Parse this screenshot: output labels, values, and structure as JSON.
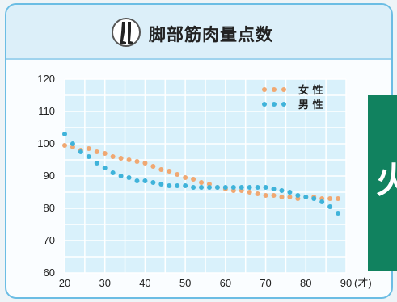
{
  "header": {
    "title": "脚部筋肉量点数",
    "icon": "legs-icon"
  },
  "chart_data": {
    "type": "scatter",
    "title": "脚部筋肉量点数",
    "xlabel": "",
    "ylabel": "",
    "x_unit": "(才)",
    "xlim": [
      20,
      90
    ],
    "ylim": [
      60,
      120
    ],
    "xticks": [
      20,
      30,
      40,
      50,
      60,
      70,
      80,
      90
    ],
    "yticks": [
      60,
      70,
      80,
      90,
      100,
      110,
      120
    ],
    "grid": true,
    "legend_position": "top-right",
    "series": [
      {
        "name": "女 性",
        "color": "#f0a872",
        "points": [
          [
            20,
            99.5
          ],
          [
            22,
            99
          ],
          [
            24,
            98
          ],
          [
            26,
            98.5
          ],
          [
            28,
            97.5
          ],
          [
            30,
            97
          ],
          [
            32,
            96
          ],
          [
            34,
            95.5
          ],
          [
            36,
            95
          ],
          [
            38,
            94.5
          ],
          [
            40,
            94
          ],
          [
            42,
            93
          ],
          [
            44,
            92
          ],
          [
            46,
            91.5
          ],
          [
            48,
            90.5
          ],
          [
            50,
            89.5
          ],
          [
            52,
            89
          ],
          [
            54,
            88
          ],
          [
            56,
            87.5
          ],
          [
            58,
            86.5
          ],
          [
            60,
            86
          ],
          [
            62,
            85.5
          ],
          [
            64,
            85.5
          ],
          [
            66,
            85
          ],
          [
            68,
            84.5
          ],
          [
            70,
            84
          ],
          [
            72,
            84
          ],
          [
            74,
            83.5
          ],
          [
            76,
            83.5
          ],
          [
            78,
            83
          ],
          [
            80,
            83.5
          ],
          [
            82,
            83.5
          ],
          [
            84,
            83
          ],
          [
            86,
            83
          ],
          [
            88,
            83
          ]
        ]
      },
      {
        "name": "男 性",
        "color": "#3fb3da",
        "points": [
          [
            20,
            103
          ],
          [
            22,
            100
          ],
          [
            24,
            97.5
          ],
          [
            26,
            96
          ],
          [
            28,
            94
          ],
          [
            30,
            92.5
          ],
          [
            32,
            91
          ],
          [
            34,
            90
          ],
          [
            36,
            89.5
          ],
          [
            38,
            88.5
          ],
          [
            40,
            88.5
          ],
          [
            42,
            88
          ],
          [
            44,
            87.5
          ],
          [
            46,
            87
          ],
          [
            48,
            87
          ],
          [
            50,
            87
          ],
          [
            52,
            86.5
          ],
          [
            54,
            86.5
          ],
          [
            56,
            86.5
          ],
          [
            58,
            86.5
          ],
          [
            60,
            86.5
          ],
          [
            62,
            86.5
          ],
          [
            64,
            86.5
          ],
          [
            66,
            86.5
          ],
          [
            68,
            86.5
          ],
          [
            70,
            86.5
          ],
          [
            72,
            86
          ],
          [
            74,
            85.5
          ],
          [
            76,
            85
          ],
          [
            78,
            84
          ],
          [
            80,
            83.5
          ],
          [
            82,
            83
          ],
          [
            84,
            82
          ],
          [
            86,
            80.5
          ],
          [
            88,
            78.5
          ]
        ]
      }
    ]
  }
}
